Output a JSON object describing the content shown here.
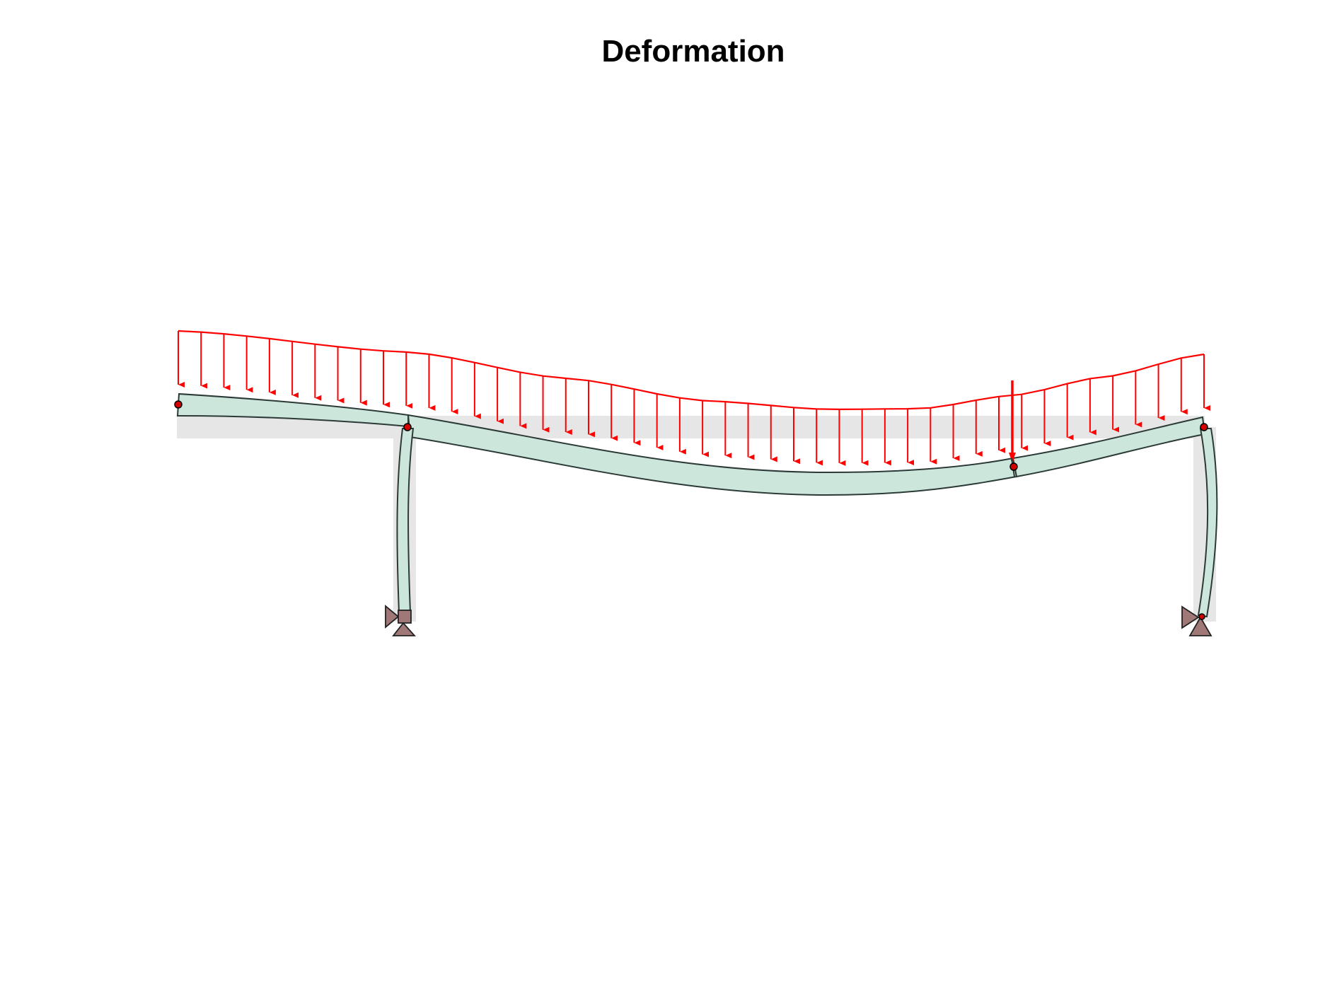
{
  "title": "Deformation",
  "colors": {
    "load": "#ff0000",
    "member_fill": "#cde6dc",
    "member_stroke": "#2b3a36",
    "undeformed": "#e6e6e6",
    "node": "#d40000",
    "support": "#a07878"
  },
  "structure": {
    "distributed_load_arrow_count": 46,
    "point_load_count": 1,
    "nodes": [
      "free-end-left",
      "column-top-left",
      "hinge-mid-right",
      "column-top-right"
    ],
    "supports": [
      {
        "name": "support-left",
        "type": "pinned-with-lateral-roller"
      },
      {
        "name": "support-right",
        "type": "pinned-with-lateral-roller"
      }
    ]
  }
}
